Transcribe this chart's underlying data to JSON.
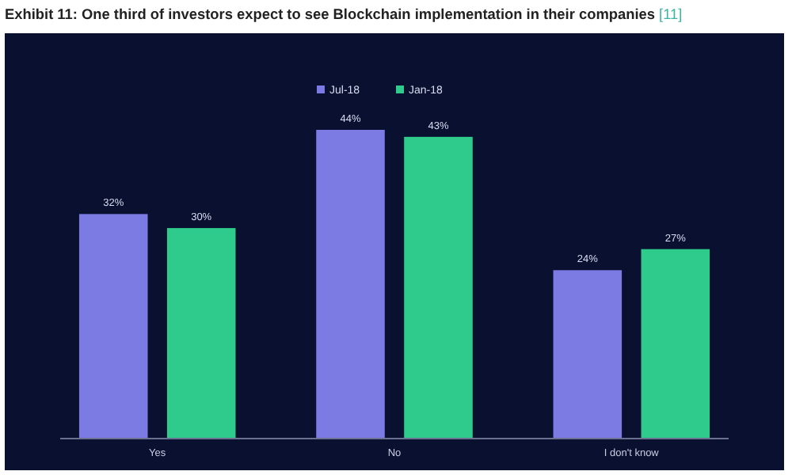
{
  "chart_data": {
    "type": "bar",
    "title": "Exhibit 11: One third of investors expect to see Blockchain implementation in their companies [11]",
    "categories": [
      "Yes",
      "No",
      "I don't know"
    ],
    "series": [
      {
        "name": "Jul-18",
        "color": "#7b7be3",
        "values": [
          32,
          44,
          24
        ],
        "value_labels": [
          "32%",
          "44%",
          "24%"
        ]
      },
      {
        "name": "Jan-18",
        "color": "#2fcb8c",
        "values": [
          30,
          43,
          27
        ],
        "value_labels": [
          "30%",
          "43%",
          "27%"
        ]
      }
    ],
    "legend": "top",
    "grid": false
  }
}
